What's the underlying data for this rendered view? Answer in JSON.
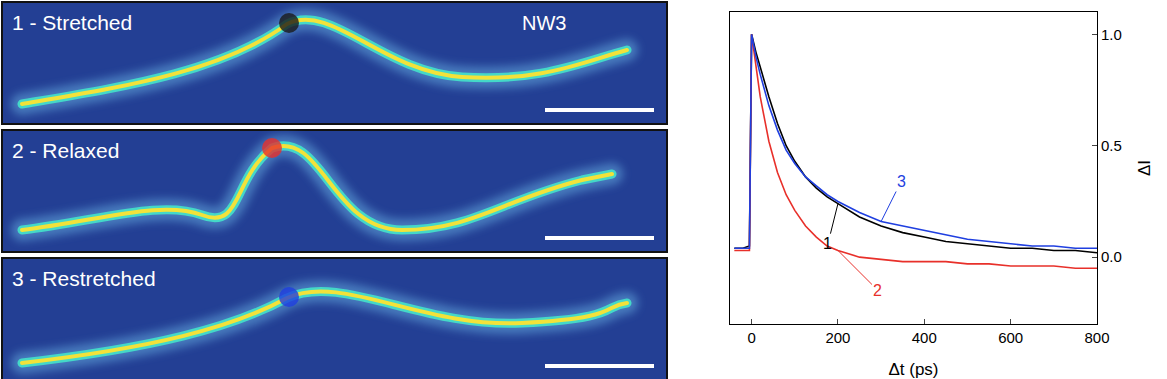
{
  "panels": [
    {
      "label": "1 - Stretched",
      "tag": "NW3",
      "marker_color": "#1a1a1a"
    },
    {
      "label": "2 - Relaxed",
      "marker_color": "#e8302a"
    },
    {
      "label": "3 - Restretched",
      "marker_color": "#1f3fe0"
    }
  ],
  "chart_data": {
    "type": "line",
    "xlabel": "Δt (ps)",
    "ylabel": "ΔI",
    "xlim": [
      -50,
      800
    ],
    "ylim": [
      -0.3,
      1.1
    ],
    "xticks": [
      0,
      200,
      400,
      600,
      800
    ],
    "yticks": [
      {
        "value": 0,
        "label": "0.0"
      },
      {
        "value": 0.5,
        "label": "0.5"
      },
      {
        "value": 1,
        "label": "1.0"
      }
    ],
    "grid": false,
    "x": [
      -40,
      -20,
      -5,
      0,
      10,
      20,
      40,
      60,
      80,
      100,
      125,
      150,
      175,
      200,
      250,
      300,
      350,
      400,
      450,
      500,
      550,
      600,
      650,
      700,
      750,
      800
    ],
    "series": [
      {
        "name": "1",
        "color": "#000000",
        "values": [
          0.04,
          0.04,
          0.05,
          1.0,
          0.92,
          0.85,
          0.72,
          0.6,
          0.5,
          0.43,
          0.36,
          0.31,
          0.27,
          0.24,
          0.18,
          0.14,
          0.11,
          0.09,
          0.07,
          0.06,
          0.05,
          0.04,
          0.04,
          0.03,
          0.03,
          0.02
        ]
      },
      {
        "name": "2",
        "color": "#e8302a",
        "values": [
          0.03,
          0.03,
          0.03,
          1.0,
          0.85,
          0.72,
          0.52,
          0.38,
          0.28,
          0.21,
          0.14,
          0.09,
          0.05,
          0.03,
          0.0,
          -0.01,
          -0.02,
          -0.02,
          -0.02,
          -0.03,
          -0.03,
          -0.04,
          -0.04,
          -0.04,
          -0.05,
          -0.05
        ]
      },
      {
        "name": "3",
        "color": "#1f3fe0",
        "values": [
          0.04,
          0.04,
          0.04,
          1.0,
          0.9,
          0.82,
          0.68,
          0.57,
          0.48,
          0.42,
          0.36,
          0.32,
          0.28,
          0.25,
          0.2,
          0.16,
          0.14,
          0.12,
          0.1,
          0.08,
          0.07,
          0.06,
          0.05,
          0.05,
          0.04,
          0.04
        ]
      }
    ]
  }
}
